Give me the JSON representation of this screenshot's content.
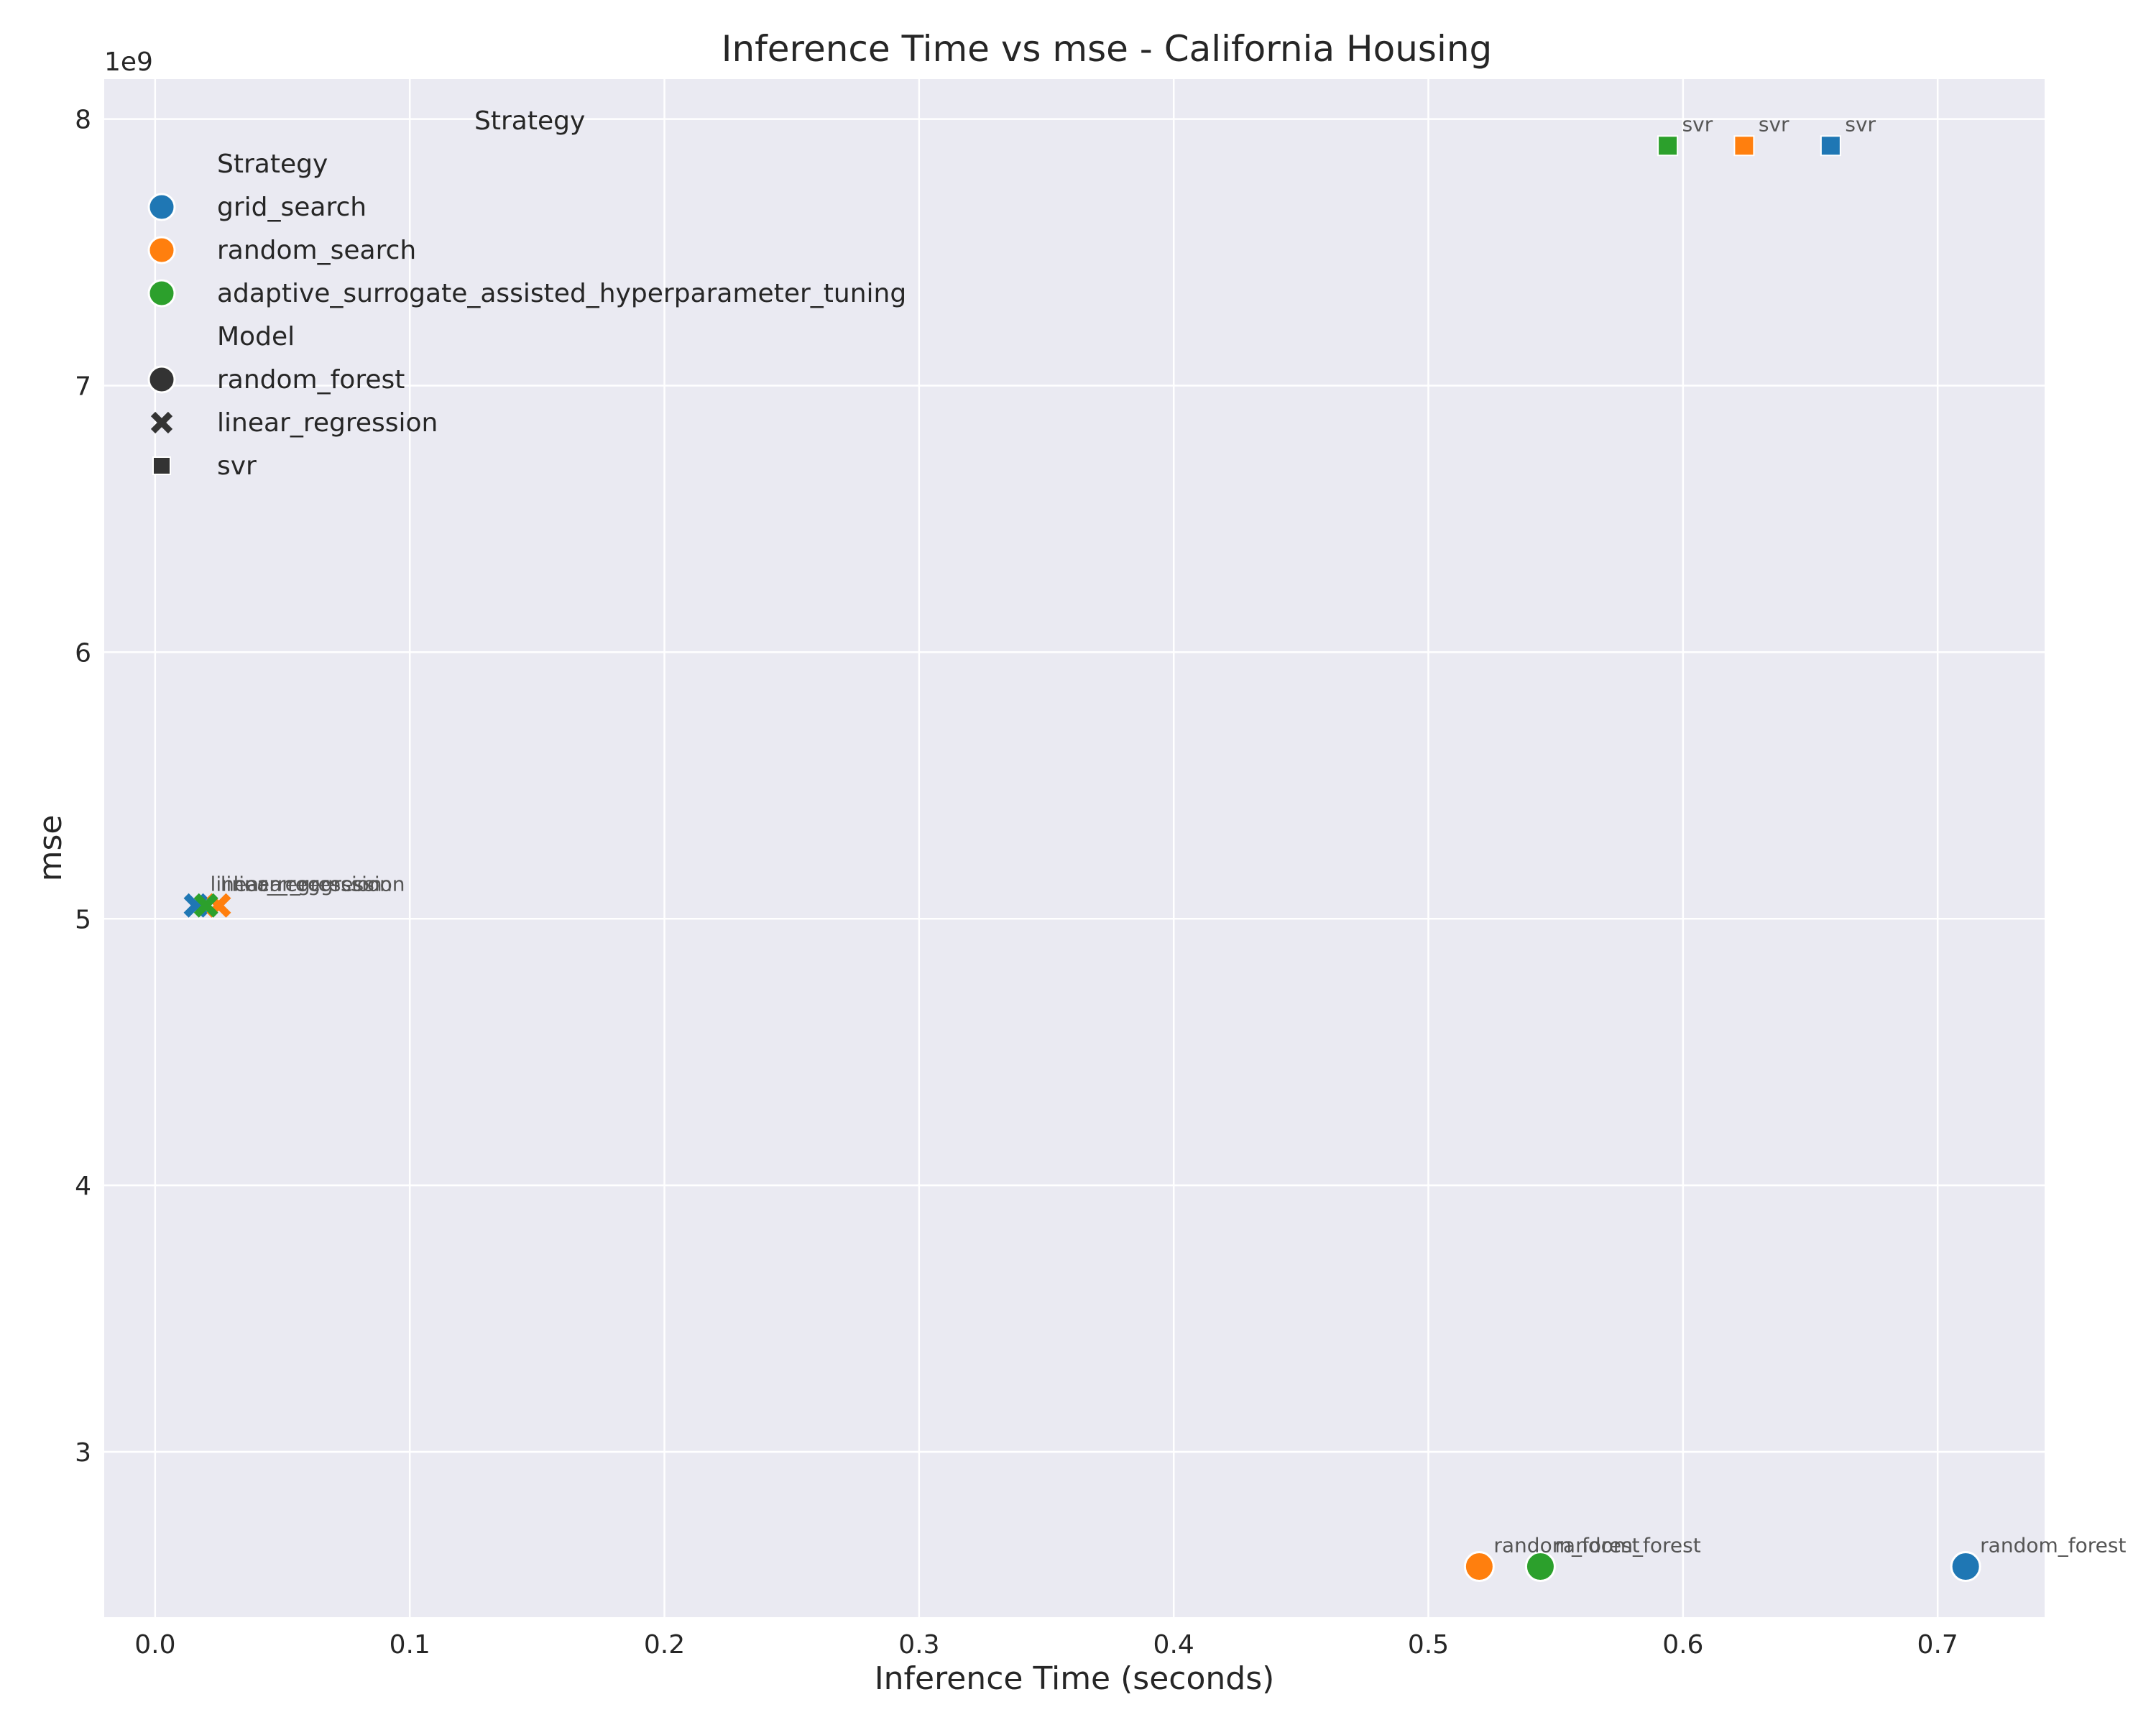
{
  "chart_data": {
    "type": "scatter",
    "title": "Inference Time vs mse - California Housing",
    "xlabel": "Inference Time (seconds)",
    "ylabel": "mse",
    "y_offset_label": "1e9",
    "xlim": [
      -0.02,
      0.742
    ],
    "ylim": [
      2.38,
      8.15
    ],
    "x_ticks": [
      0.0,
      0.1,
      0.2,
      0.3,
      0.4,
      0.5,
      0.6,
      0.7
    ],
    "x_tick_labels": [
      "0.0",
      "0.1",
      "0.2",
      "0.3",
      "0.4",
      "0.5",
      "0.6",
      "0.7"
    ],
    "y_ticks": [
      3,
      4,
      5,
      6,
      7,
      8
    ],
    "y_tick_labels": [
      "3",
      "4",
      "5",
      "6",
      "7",
      "8"
    ],
    "grid": true,
    "background": "#eaeaf2",
    "legend": {
      "placement": "upper-left",
      "outer_title": "Strategy",
      "hue_title": "Strategy",
      "style_title": "Model",
      "hue_entries": [
        {
          "label": "grid_search",
          "color": "#1f77b4"
        },
        {
          "label": "random_search",
          "color": "#ff7f0e"
        },
        {
          "label": "adaptive_surrogate_assisted_hyperparameter_tuning",
          "color": "#2ca02c"
        }
      ],
      "style_entries": [
        {
          "label": "random_forest",
          "marker": "circle"
        },
        {
          "label": "linear_regression",
          "marker": "x"
        },
        {
          "label": "svr",
          "marker": "square"
        }
      ],
      "legend_marker_color": "#333333"
    },
    "points": [
      {
        "strategy": "grid_search",
        "model": "random_forest",
        "x": 0.711,
        "y": 2.57,
        "label": "random_forest"
      },
      {
        "strategy": "random_search",
        "model": "random_forest",
        "x": 0.52,
        "y": 2.57,
        "label": "random_forest"
      },
      {
        "strategy": "adaptive_surrogate_assisted_hyperparameter_tuning",
        "model": "random_forest",
        "x": 0.544,
        "y": 2.57,
        "label": "random_forest"
      },
      {
        "strategy": "grid_search",
        "model": "linear_regression",
        "x": 0.016,
        "y": 5.05,
        "label": "linear_regression"
      },
      {
        "strategy": "random_search",
        "model": "linear_regression",
        "x": 0.025,
        "y": 5.05,
        "label": "linear_regression"
      },
      {
        "strategy": "adaptive_surrogate_assisted_hyperparameter_tuning",
        "model": "linear_regression",
        "x": 0.02,
        "y": 5.05,
        "label": "linear_regression"
      },
      {
        "strategy": "grid_search",
        "model": "svr",
        "x": 0.658,
        "y": 7.9,
        "label": "svr"
      },
      {
        "strategy": "random_search",
        "model": "svr",
        "x": 0.624,
        "y": 7.9,
        "label": "svr"
      },
      {
        "strategy": "adaptive_surrogate_assisted_hyperparameter_tuning",
        "model": "svr",
        "x": 0.594,
        "y": 7.9,
        "label": "svr"
      }
    ]
  }
}
